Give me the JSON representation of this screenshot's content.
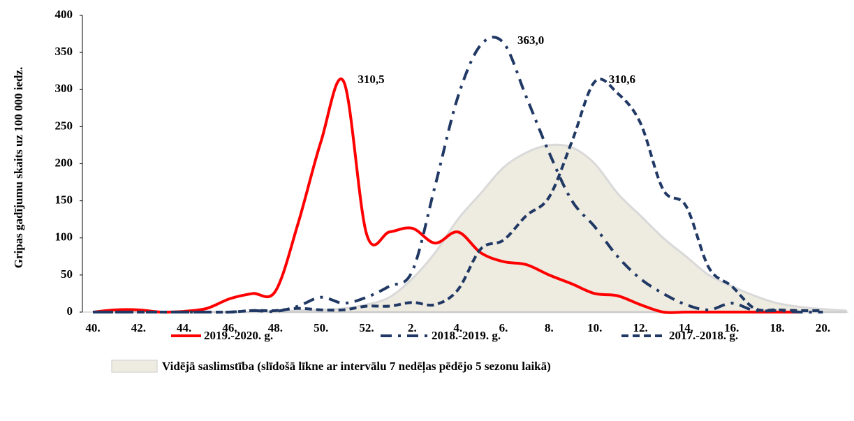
{
  "chart_data": {
    "type": "line",
    "y_label": "Gripas gadījumu skaits uz 100 000 iedz.",
    "categories": [
      "40.",
      null,
      "42.",
      null,
      "44.",
      null,
      "46.",
      null,
      "48.",
      null,
      "50.",
      null,
      "52.",
      null,
      "2.",
      null,
      "4.",
      null,
      "6.",
      null,
      "8.",
      null,
      "10.",
      null,
      "12.",
      null,
      "14.",
      null,
      "16.",
      null,
      "18.",
      null,
      "20.",
      null
    ],
    "ylim": [
      0,
      400
    ],
    "yticks": [
      0,
      50,
      100,
      150,
      200,
      250,
      300,
      350,
      400
    ],
    "grid": false,
    "series": [
      {
        "name": "2019.-2020. g.",
        "color": "#ff0000",
        "dash": "solid",
        "values": [
          0,
          3,
          3,
          0,
          1,
          5,
          18,
          25,
          28,
          120,
          230,
          310.5,
          105,
          108,
          113,
          93,
          108,
          80,
          68,
          64,
          50,
          38,
          25,
          22,
          10,
          0,
          0,
          0,
          0,
          0,
          0,
          0,
          null,
          null
        ],
        "value_labels": [
          null,
          null,
          null,
          null,
          null,
          null,
          null,
          null,
          null,
          null,
          null,
          "310,5",
          null,
          null,
          null,
          null,
          null,
          null,
          null,
          null,
          null,
          null,
          null,
          null,
          null,
          null,
          null,
          null,
          null,
          null,
          null,
          null,
          null,
          null
        ]
      },
      {
        "name": "2018.-2019. g.",
        "color": "#203864",
        "dash": "dash-dot",
        "values": [
          0,
          0,
          0,
          0,
          0,
          0,
          0,
          2,
          1,
          8,
          20,
          12,
          20,
          35,
          55,
          170,
          290,
          360,
          363,
          290,
          215,
          150,
          115,
          75,
          45,
          25,
          10,
          3,
          12,
          2,
          2,
          0,
          0,
          null
        ],
        "value_labels": [
          null,
          null,
          null,
          null,
          null,
          null,
          null,
          null,
          null,
          null,
          null,
          null,
          null,
          null,
          null,
          null,
          null,
          null,
          "363,0",
          null,
          null,
          null,
          null,
          null,
          null,
          null,
          null,
          null,
          null,
          null,
          null,
          null,
          null,
          null
        ]
      },
      {
        "name": "2017.-2018. g.",
        "color": "#203864",
        "dash": "dash",
        "values": [
          0,
          0,
          0,
          0,
          0,
          0,
          0,
          2,
          2,
          5,
          3,
          3,
          8,
          8,
          13,
          10,
          30,
          85,
          97,
          130,
          155,
          230,
          310.6,
          295,
          255,
          165,
          143,
          60,
          35,
          5,
          3,
          2,
          2,
          null
        ],
        "value_labels": [
          null,
          null,
          null,
          null,
          null,
          null,
          null,
          null,
          null,
          null,
          null,
          null,
          null,
          null,
          null,
          null,
          null,
          null,
          null,
          null,
          null,
          null,
          "310,6",
          null,
          null,
          null,
          null,
          null,
          null,
          null,
          null,
          null,
          null,
          null
        ]
      },
      {
        "name": "Vidējā saslimstība (slīdošā līkne ar intervālu 7 nedēļas pēdējo 5 sezonu laikā)",
        "color": "#eeebe0",
        "dash": "area",
        "values": [
          0,
          0,
          0,
          0,
          0,
          0,
          0,
          0,
          1,
          2,
          3,
          5,
          10,
          20,
          45,
          80,
          125,
          160,
          195,
          215,
          225,
          222,
          200,
          160,
          130,
          100,
          75,
          50,
          35,
          22,
          12,
          7,
          4,
          2
        ]
      }
    ]
  }
}
